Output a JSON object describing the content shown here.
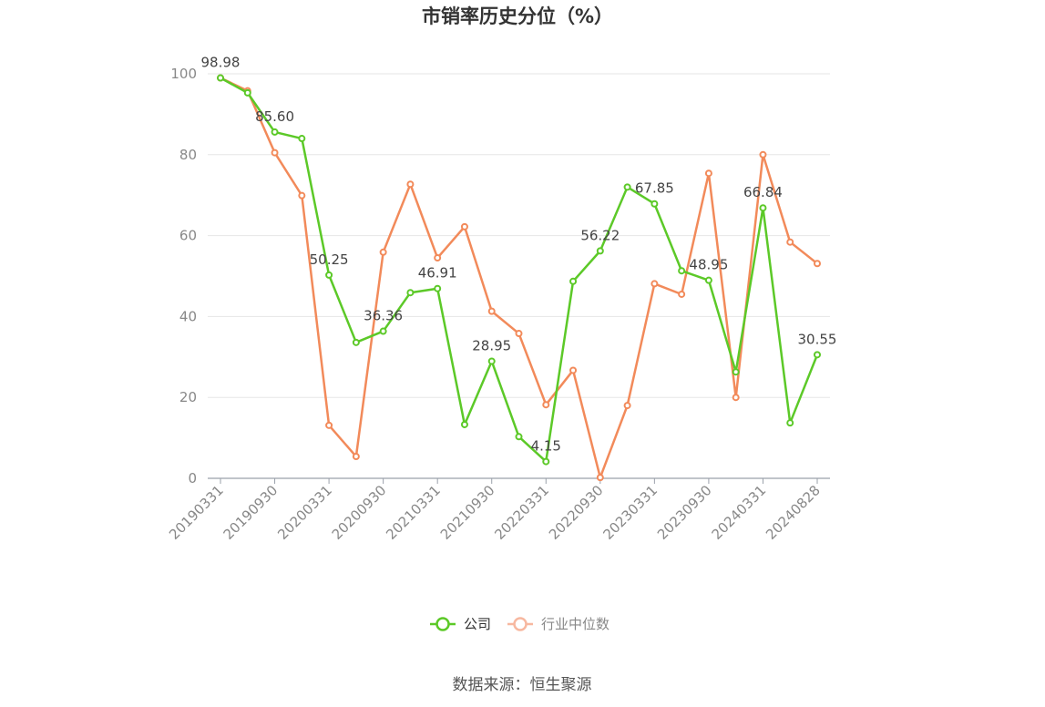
{
  "chart_data": {
    "type": "line",
    "title": "市销率历史分位（%）",
    "source": "数据来源：恒生聚源",
    "ylim": [
      0,
      100
    ],
    "yticks": [
      0,
      20,
      40,
      60,
      80,
      100
    ],
    "grid": true,
    "legend_position": "bottom-center",
    "x": [
      "20190331",
      "20190630",
      "20190930",
      "20191231",
      "20200331",
      "20200630",
      "20200930",
      "20201231",
      "20210331",
      "20210630",
      "20210930",
      "20211231",
      "20220331",
      "20220630",
      "20220930",
      "20221231",
      "20230331",
      "20230630",
      "20230930",
      "20231231",
      "20240331",
      "20240630",
      "20240828"
    ],
    "x_tick_labels": [
      "20190331",
      "20190930",
      "20200331",
      "20200930",
      "20210331",
      "20210930",
      "20220331",
      "20220930",
      "20230331",
      "20230930",
      "20240331",
      "20240828"
    ],
    "series": [
      {
        "name": "公司",
        "color": "#5cc928",
        "values": [
          98.98,
          95.3,
          85.6,
          84.0,
          50.25,
          33.6,
          36.36,
          45.9,
          46.91,
          13.3,
          28.95,
          10.3,
          4.15,
          48.7,
          56.22,
          72.0,
          67.85,
          51.3,
          48.95,
          26.3,
          66.84,
          13.7,
          30.55
        ],
        "labels": {
          "0": "98.98",
          "2": "85.60",
          "4": "50.25",
          "6": "36.36",
          "8": "46.91",
          "10": "28.95",
          "12": "4.15",
          "14": "56.22",
          "16": "67.85",
          "18": "48.95",
          "20": "66.84",
          "22": "30.55"
        }
      },
      {
        "name": "行业中位数",
        "color": "#f28a5a",
        "values": [
          98.98,
          95.8,
          80.5,
          69.9,
          13.1,
          5.4,
          55.9,
          72.7,
          54.5,
          62.2,
          41.3,
          35.8,
          18.2,
          26.7,
          0.2,
          18.0,
          48.1,
          45.5,
          75.4,
          20.0,
          80.0,
          58.4,
          53.1
        ]
      }
    ]
  }
}
